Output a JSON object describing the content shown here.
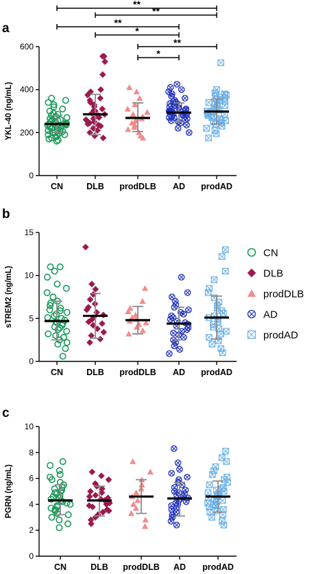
{
  "figure": {
    "categories": [
      "CN",
      "DLB",
      "prodDLB",
      "AD",
      "prodAD"
    ],
    "legend": [
      {
        "label": "CN",
        "marker": "circle-open",
        "color": "#1a9a5a"
      },
      {
        "label": "DLB",
        "marker": "diamond",
        "color": "#9b1a4f"
      },
      {
        "label": "prodDLB",
        "marker": "triangle",
        "color": "#f08c8c"
      },
      {
        "label": "AD",
        "marker": "circle-x",
        "color": "#2233bb"
      },
      {
        "label": "prodAD",
        "marker": "square-x",
        "color": "#6ab0e8"
      }
    ]
  },
  "chart_data": [
    {
      "panel": "a",
      "type": "scatter",
      "ylabel": "YKL-40 (ng/mL)",
      "ylim": [
        0,
        600
      ],
      "yticks": [
        0,
        200,
        400,
        600
      ],
      "categories": [
        "CN",
        "DLB",
        "prodDLB",
        "AD",
        "prodAD"
      ],
      "summary": [
        {
          "group": "CN",
          "mean": 240,
          "sd_low": 200,
          "sd_high": 280
        },
        {
          "group": "DLB",
          "mean": 285,
          "sd_low": 190,
          "sd_high": 378
        },
        {
          "group": "prodDLB",
          "mean": 268,
          "sd_low": 205,
          "sd_high": 338
        },
        {
          "group": "AD",
          "mean": 293,
          "sd_low": 250,
          "sd_high": 338
        },
        {
          "group": "prodAD",
          "mean": 298,
          "sd_low": 240,
          "sd_high": 356
        }
      ],
      "points": [
        {
          "group": "CN",
          "values": [
            160,
            165,
            170,
            175,
            180,
            185,
            190,
            190,
            195,
            200,
            200,
            205,
            210,
            210,
            215,
            220,
            220,
            225,
            225,
            230,
            230,
            235,
            235,
            240,
            240,
            245,
            245,
            250,
            250,
            255,
            260,
            260,
            265,
            270,
            275,
            280,
            285,
            290,
            300,
            310,
            320,
            330,
            340,
            350,
            360
          ]
        },
        {
          "group": "DLB",
          "values": [
            175,
            185,
            200,
            210,
            220,
            230,
            235,
            240,
            245,
            250,
            255,
            260,
            265,
            270,
            280,
            285,
            290,
            295,
            300,
            305,
            310,
            320,
            330,
            340,
            350,
            360,
            375,
            390,
            400,
            470,
            530,
            555,
            555
          ]
        },
        {
          "group": "prodDLB",
          "values": [
            175,
            185,
            200,
            215,
            225,
            235,
            245,
            255,
            265,
            275,
            285,
            295,
            310,
            330,
            360,
            390,
            410
          ]
        },
        {
          "group": "AD",
          "values": [
            200,
            220,
            235,
            245,
            250,
            255,
            260,
            265,
            270,
            270,
            275,
            280,
            280,
            285,
            285,
            290,
            290,
            295,
            295,
            300,
            300,
            305,
            305,
            310,
            310,
            315,
            320,
            325,
            330,
            335,
            340,
            345,
            350,
            360,
            370,
            380,
            390,
            400,
            410,
            425
          ]
        },
        {
          "group": "prodAD",
          "values": [
            175,
            195,
            210,
            220,
            230,
            240,
            245,
            250,
            255,
            260,
            265,
            270,
            275,
            280,
            285,
            285,
            290,
            295,
            300,
            300,
            305,
            310,
            315,
            320,
            325,
            330,
            335,
            340,
            345,
            350,
            355,
            360,
            365,
            370,
            375,
            380,
            385,
            400,
            525
          ]
        }
      ],
      "significance": [
        {
          "from": "CN",
          "to": "prodAD",
          "label": "**"
        },
        {
          "from": "DLB",
          "to": "prodAD",
          "label": "**"
        },
        {
          "from": "CN",
          "to": "AD",
          "label": "**"
        },
        {
          "from": "DLB",
          "to": "AD",
          "label": "*"
        },
        {
          "from": "prodDLB",
          "to": "prodAD",
          "label": "**"
        },
        {
          "from": "prodDLB",
          "to": "AD",
          "label": "*"
        }
      ]
    },
    {
      "panel": "b",
      "type": "scatter",
      "ylabel": "sTREM2 (ng/mL)",
      "ylim": [
        0,
        15
      ],
      "yticks": [
        0,
        5,
        10,
        15
      ],
      "categories": [
        "CN",
        "DLB",
        "prodDLB",
        "AD",
        "prodAD"
      ],
      "summary": [
        {
          "group": "CN",
          "mean": 4.7,
          "sd_low": 2.5,
          "sd_high": 7.0
        },
        {
          "group": "DLB",
          "mean": 5.3,
          "sd_low": 2.7,
          "sd_high": 7.9
        },
        {
          "group": "prodDLB",
          "mean": 4.8,
          "sd_low": 3.2,
          "sd_high": 6.4
        },
        {
          "group": "AD",
          "mean": 4.4,
          "sd_low": 2.5,
          "sd_high": 6.3
        },
        {
          "group": "prodAD",
          "mean": 5.1,
          "sd_low": 2.6,
          "sd_high": 7.6
        }
      ],
      "points": [
        {
          "group": "CN",
          "values": [
            0.6,
            1.5,
            2.0,
            2.2,
            2.5,
            2.8,
            3.0,
            3.2,
            3.5,
            3.7,
            3.9,
            4.0,
            4.2,
            4.4,
            4.5,
            4.6,
            4.8,
            5.0,
            5.1,
            5.3,
            5.5,
            5.7,
            5.9,
            6.0,
            6.2,
            6.5,
            6.8,
            7.0,
            7.5,
            8.0,
            8.5,
            9.0,
            9.8,
            10.5,
            11.0,
            11.0
          ]
        },
        {
          "group": "DLB",
          "values": [
            2.2,
            2.6,
            3.0,
            3.4,
            3.8,
            4.2,
            4.4,
            4.6,
            4.9,
            5.1,
            5.4,
            5.7,
            6.0,
            6.3,
            6.7,
            7.2,
            7.8,
            8.4,
            9.0,
            13.3
          ]
        },
        {
          "group": "prodDLB",
          "values": [
            3.2,
            3.6,
            4.0,
            4.3,
            4.5,
            4.7,
            4.9,
            5.1,
            5.4,
            5.8,
            6.2,
            7.0,
            8.5
          ]
        },
        {
          "group": "AD",
          "values": [
            0.9,
            1.4,
            1.8,
            2.2,
            2.5,
            2.8,
            3.1,
            3.3,
            3.5,
            3.7,
            3.9,
            4.1,
            4.3,
            4.5,
            4.7,
            4.9,
            5.1,
            5.3,
            5.5,
            5.7,
            6.0,
            6.3,
            6.6,
            7.0,
            7.5,
            8.0,
            9.8
          ]
        },
        {
          "group": "prodAD",
          "values": [
            1.0,
            1.5,
            2.0,
            2.4,
            2.8,
            3.2,
            3.5,
            3.8,
            4.0,
            4.3,
            4.6,
            4.9,
            5.1,
            5.3,
            5.6,
            5.9,
            6.2,
            6.5,
            6.9,
            7.4,
            8.0,
            8.5,
            9.5,
            10.5,
            12.2,
            13.0
          ]
        }
      ]
    },
    {
      "panel": "c",
      "type": "scatter",
      "ylabel": "PGRN (ng/mL)",
      "ylim": [
        0,
        10
      ],
      "yticks": [
        0,
        2,
        4,
        6,
        8,
        10
      ],
      "categories": [
        "CN",
        "DLB",
        "prodDLB",
        "AD",
        "prodAD"
      ],
      "summary": [
        {
          "group": "CN",
          "mean": 4.3,
          "sd_low": 3.2,
          "sd_high": 5.5
        },
        {
          "group": "DLB",
          "mean": 4.3,
          "sd_low": 3.1,
          "sd_high": 5.4
        },
        {
          "group": "prodDLB",
          "mean": 4.6,
          "sd_low": 3.3,
          "sd_high": 5.9
        },
        {
          "group": "AD",
          "mean": 4.45,
          "sd_low": 3.1,
          "sd_high": 5.7
        },
        {
          "group": "prodAD",
          "mean": 4.6,
          "sd_low": 3.4,
          "sd_high": 5.8
        }
      ],
      "points": [
        {
          "group": "CN",
          "values": [
            2.2,
            2.5,
            2.8,
            3.0,
            3.2,
            3.3,
            3.5,
            3.6,
            3.7,
            3.8,
            3.9,
            4.0,
            4.1,
            4.2,
            4.3,
            4.4,
            4.5,
            4.6,
            4.7,
            4.8,
            4.9,
            5.0,
            5.1,
            5.2,
            5.3,
            5.5,
            5.7,
            5.9,
            6.1,
            6.3,
            6.6,
            7.0,
            7.3
          ]
        },
        {
          "group": "DLB",
          "values": [
            2.5,
            2.8,
            3.0,
            3.2,
            3.4,
            3.5,
            3.6,
            3.8,
            3.9,
            4.0,
            4.1,
            4.2,
            4.3,
            4.4,
            4.5,
            4.6,
            4.7,
            4.9,
            5.0,
            5.2,
            5.4,
            5.6,
            5.9,
            6.2,
            6.5
          ]
        },
        {
          "group": "prodDLB",
          "values": [
            2.3,
            2.8,
            3.3,
            3.7,
            4.0,
            4.3,
            4.6,
            4.9,
            5.2,
            5.5,
            5.9,
            6.5,
            7.3
          ]
        },
        {
          "group": "AD",
          "values": [
            2.4,
            2.7,
            3.0,
            3.2,
            3.4,
            3.6,
            3.7,
            3.9,
            4.0,
            4.1,
            4.2,
            4.3,
            4.4,
            4.5,
            4.6,
            4.7,
            4.8,
            4.9,
            5.0,
            5.1,
            5.3,
            5.5,
            5.7,
            5.9,
            6.1,
            6.4,
            6.7,
            7.2,
            8.3
          ]
        },
        {
          "group": "prodAD",
          "values": [
            2.4,
            2.7,
            3.0,
            3.2,
            3.4,
            3.5,
            3.6,
            3.8,
            3.9,
            4.0,
            4.1,
            4.2,
            4.3,
            4.4,
            4.5,
            4.6,
            4.7,
            4.8,
            4.9,
            5.0,
            5.1,
            5.2,
            5.3,
            5.5,
            5.7,
            5.9,
            6.1,
            6.3,
            6.6,
            6.9,
            7.3,
            7.6,
            8.1
          ]
        }
      ]
    }
  ]
}
